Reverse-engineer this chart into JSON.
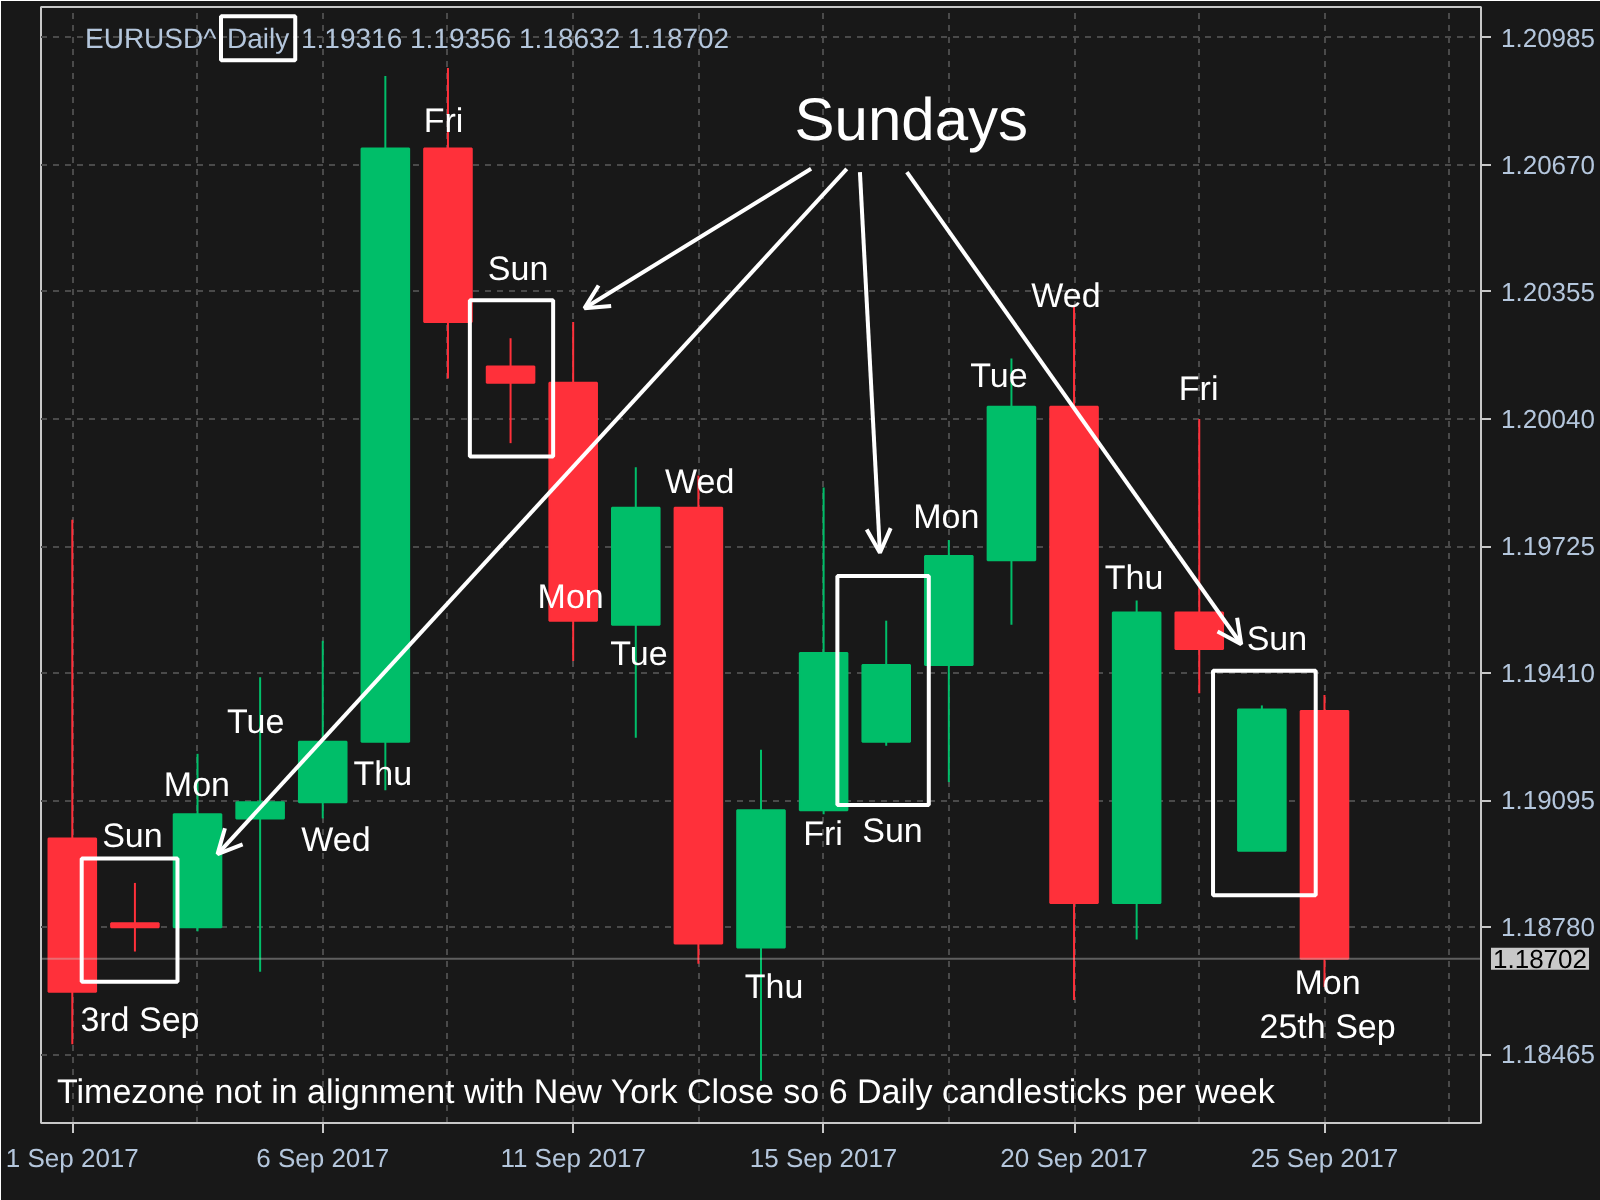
{
  "chart_data": {
    "type": "candlestick",
    "title": "EURUSD^",
    "subtitle": "Daily",
    "categories": [
      "1 Sep 2017",
      null,
      null,
      null,
      "6 Sep 2017",
      null,
      null,
      null,
      "11 Sep 2017",
      null,
      null,
      null,
      "15 Sep 2017",
      null,
      null,
      null,
      "20 Sep 2017",
      null,
      null,
      null,
      "25 Sep 2017",
      null,
      null
    ],
    "ohlc": [
      [
        1.19,
        1.1979,
        1.1849,
        1.1862
      ],
      [
        1.1879,
        1.1889,
        1.1872,
        1.1878
      ],
      [
        1.1878,
        1.1921,
        1.1877,
        1.1906
      ],
      [
        1.1905,
        1.194,
        1.1867,
        1.1909
      ],
      [
        1.1909,
        1.1949,
        1.1905,
        1.1924
      ],
      [
        1.1924,
        1.2089,
        1.1912,
        1.2071
      ],
      [
        1.2071,
        1.2091,
        1.2014,
        1.2028
      ],
      [
        1.2017,
        1.2024,
        1.1998,
        1.2013
      ],
      [
        1.2013,
        1.2028,
        1.1944,
        1.1954
      ],
      [
        1.1953,
        1.1992,
        1.1925,
        1.1982
      ],
      [
        1.1982,
        1.199,
        1.1869,
        1.1874
      ],
      [
        1.1873,
        1.1922,
        1.184,
        1.1907
      ],
      [
        1.1907,
        1.1987,
        1.1906,
        1.1946
      ],
      [
        1.1924,
        1.1954,
        1.1923,
        1.1943
      ],
      [
        1.1943,
        1.1974,
        1.1914,
        1.197
      ],
      [
        1.1969,
        1.2019,
        1.1953,
        1.2007
      ],
      [
        1.2007,
        1.2032,
        1.186,
        1.1884
      ],
      [
        1.1884,
        1.1959,
        1.1875,
        1.1956
      ],
      [
        1.1956,
        1.2004,
        1.1936,
        1.1947
      ],
      [
        1.1897,
        1.1933,
        1.1897,
        1.1932
      ],
      [
        1.19316,
        1.19356,
        1.18632,
        1.18702
      ],
      null,
      null
    ],
    "colors": [
      "#ff303a",
      "#ff303a",
      "#00be69",
      "#00be69",
      "#00be69",
      "#00be69",
      "#ff303a",
      "#ff303a",
      "#ff303a",
      "#00be69",
      "#ff303a",
      "#00be69",
      "#00be69",
      "#00be69",
      "#00be69",
      "#00be69",
      "#ff303a",
      "#00be69",
      "#ff303a",
      "#00be69",
      "#ff303a",
      null,
      null
    ],
    "ylim": [
      1.18295,
      1.21061
    ],
    "yticks": [
      1.20985,
      {
        "value": 1.2067,
        "label": "1.20670"
      },
      1.20355,
      {
        "value": 1.2004,
        "label": "1.20040"
      },
      1.19725,
      {
        "value": 1.1941,
        "label": "1.19410"
      },
      1.19095,
      {
        "value": 1.1878,
        "label": "1.18780"
      },
      1.18465
    ],
    "grid": true,
    "ref_lines": [
      {
        "axis": "y",
        "value": 1.18702,
        "label": "1.18702",
        "color": "#c8c8c8"
      }
    ],
    "annotations": [
      "1.19316 1.19356 1.18632 1.18702",
      "Sundays",
      "Sun",
      "3rd Sep",
      "Mon",
      "Tue",
      "Wed",
      "Thu",
      "Fri",
      "Sun",
      "Mon",
      "Tue",
      "Wed",
      "Thu",
      "Fri",
      "Sun",
      "Mon",
      "Tue",
      "Wed",
      "Thu",
      "Fri",
      "Sun",
      "Mon\n25th Sep",
      "Timezone not in alignment with New York Close so 6 Daily candlesticks per week"
    ]
  }
}
